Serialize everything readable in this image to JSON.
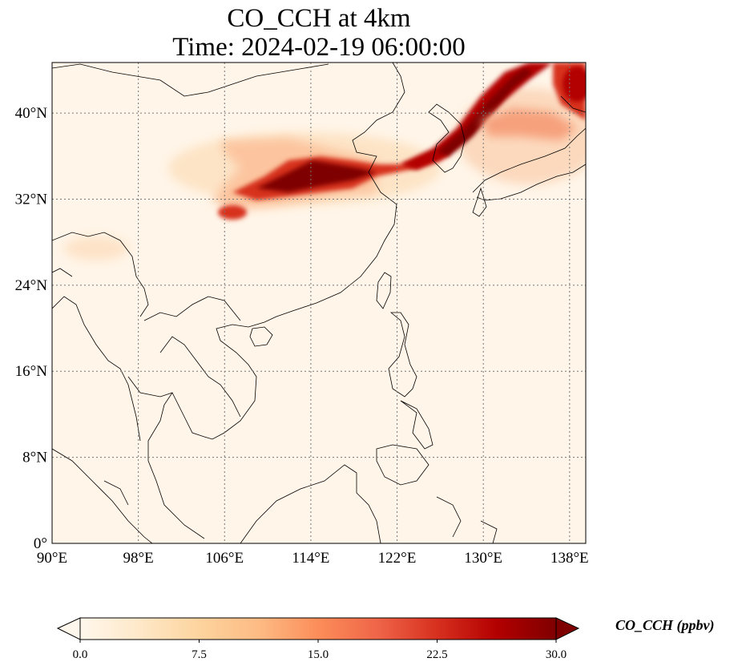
{
  "title": {
    "line1": "CO_CCH at 4km",
    "line2": "Time: 2024-02-19 06:00:00"
  },
  "map": {
    "projection": "PlateCarree",
    "lon_range": [
      90,
      139.5
    ],
    "lat_range": [
      0,
      44.7
    ],
    "gridlines": "dotted",
    "x_ticks": [
      "90°E",
      "98°E",
      "106°E",
      "114°E",
      "122°E",
      "130°E",
      "138°E"
    ],
    "y_ticks": [
      "0°",
      "8°N",
      "16°N",
      "24°N",
      "32°N",
      "40°N"
    ],
    "x_tick_values": [
      90,
      98,
      106,
      114,
      122,
      130,
      138
    ],
    "y_tick_values": [
      0,
      8,
      16,
      24,
      32,
      40
    ],
    "features": [
      "coastlines",
      "country-borders",
      "co-concentration-field"
    ]
  },
  "colorbar": {
    "label": "CO_CCH (ppbv)",
    "ticks": [
      "0.0",
      "7.5",
      "15.0",
      "22.5",
      "30.0"
    ],
    "tick_values": [
      0,
      7.5,
      15,
      22.5,
      30
    ],
    "range": [
      0,
      30
    ],
    "extend": "both",
    "colormap": "OrRd",
    "colors": [
      "#fff7ec",
      "#fee8c8",
      "#fdd49e",
      "#fdbb84",
      "#fc8d59",
      "#ef6548",
      "#d7301f",
      "#b30000",
      "#7f0000"
    ]
  }
}
